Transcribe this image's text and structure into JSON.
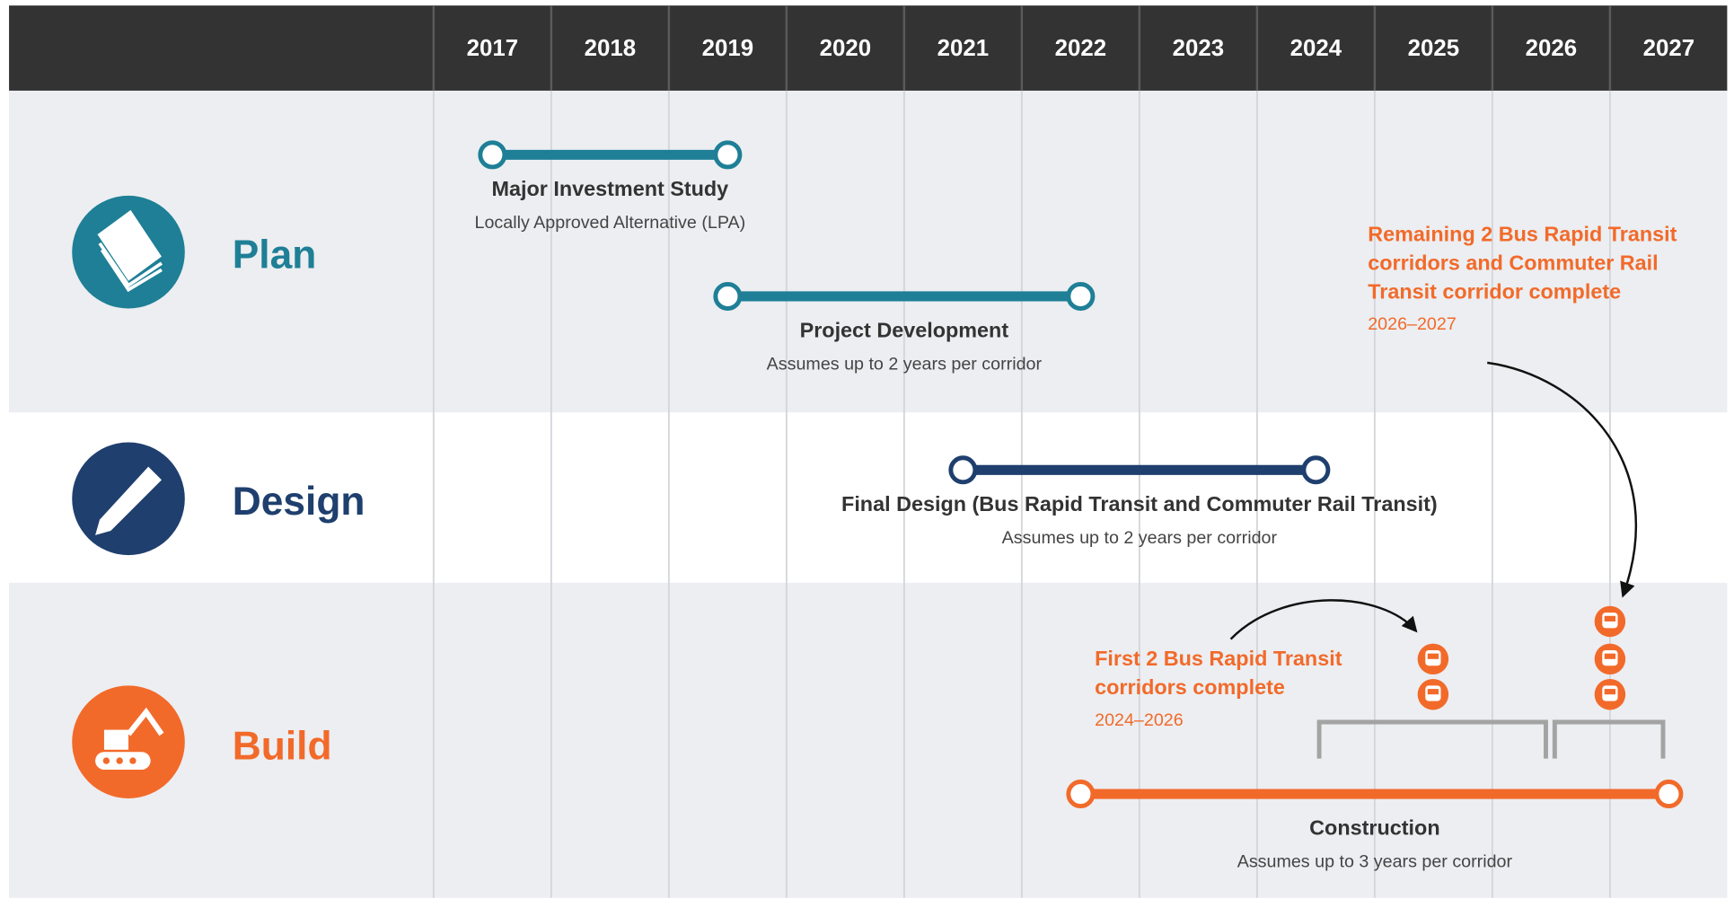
{
  "years": [
    2017,
    2018,
    2019,
    2020,
    2021,
    2022,
    2023,
    2024,
    2025,
    2026,
    2027
  ],
  "phases": [
    {
      "label": "Plan",
      "color": "#1e7f96"
    },
    {
      "label": "Design",
      "color": "#1f3f6e"
    },
    {
      "label": "Build",
      "color": "#f26a2a"
    }
  ],
  "tasks": [
    {
      "title": "Major Investment Study",
      "subtitle": "Locally Approved Alternative (LPA)",
      "start": 2017.5,
      "end": 2019.5,
      "color": "#1e7f96"
    },
    {
      "title": "Project Development",
      "subtitle": "Assumes up to 2 years per corridor",
      "start": 2019.5,
      "end": 2022.5,
      "color": "#1e7f96"
    },
    {
      "title": "Final Design (Bus Rapid Transit and Commuter Rail Transit)",
      "subtitle": "Assumes up to 2 years per corridor",
      "start": 2021.5,
      "end": 2024.5,
      "color": "#1f3f6e"
    },
    {
      "title": "Construction",
      "subtitle": "Assumes up to 3 years per corridor",
      "start": 2022.5,
      "end": 2027.5,
      "color": "#f26a2a"
    }
  ],
  "milestones": [
    {
      "title_lines": [
        "First 2 Bus Rapid Transit",
        "corridors complete"
      ],
      "dates": "2024–2026"
    },
    {
      "title_lines": [
        "Remaining 2 Bus Rapid Transit",
        "corridors and Commuter Rail",
        "Transit corridor complete"
      ],
      "dates": "2026–2027"
    }
  ]
}
